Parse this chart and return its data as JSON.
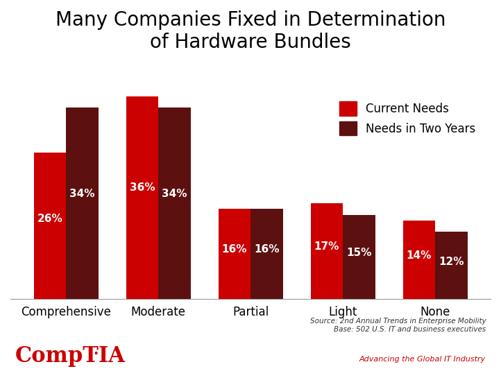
{
  "title": "Many Companies Fixed in Determination\nof Hardware Bundles",
  "categories": [
    "Comprehensive",
    "Moderate",
    "Partial",
    "Light",
    "None"
  ],
  "current_needs": [
    26,
    36,
    16,
    17,
    14
  ],
  "needs_two_years": [
    34,
    34,
    16,
    15,
    12
  ],
  "color_current": "#CC0000",
  "color_two_years": "#5C1010",
  "legend_labels": [
    "Current Needs",
    "Needs in Two Years"
  ],
  "source_text": "Source: 2nd Annual Trends in Enterprise Mobility\nBase: 502 U.S. IT and business executives",
  "advancing_text": "Advancing the Global IT Industry",
  "comptia_text": "CompTIA",
  "comptia_color": "#CC0000",
  "advancing_color": "#CC0000",
  "source_color": "#333333",
  "bar_width": 0.35,
  "ylim": [
    0,
    42
  ],
  "background_color": "#FFFFFF",
  "title_fontsize": 20,
  "label_fontsize": 11,
  "tick_fontsize": 12,
  "legend_fontsize": 12
}
